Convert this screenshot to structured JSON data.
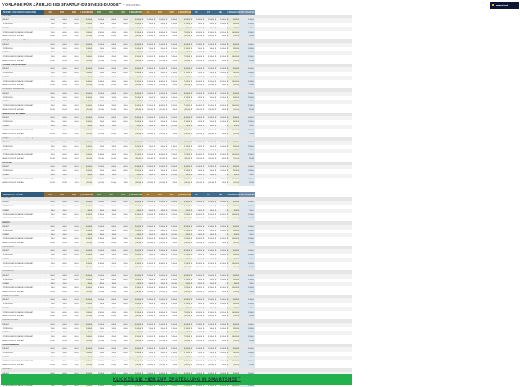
{
  "title": "VORLAGE FÜR JÄHRLICHES STARTUP-BUSINESS-BUDGET",
  "subtitle": "– BEISPIEL",
  "logo_text": "smartsheet",
  "cta_label": "KLICKEN SIE HIER ZUR ERSTELLUNG IN SMARTSHEET",
  "months": [
    "JAN",
    "FEB",
    "MÄR",
    "Q1 ERGEBNISSE",
    "APR",
    "MAI",
    "JUN",
    "Q2 ERGEBNISSE",
    "JUL",
    "AUG",
    "SEPT",
    "Q3 ERGEBNISSE",
    "OKT",
    "NOV",
    "DEZ",
    "Q4 ERGEBNISSE",
    "JÄHRLICHES GESAMTERGEBNIS"
  ],
  "colors": {
    "header_label": "#2f5b7c",
    "q1": "#8a6d3b",
    "q2": "#5f7d4b",
    "q3": "#a07a3a",
    "q4": "#3f6b8c",
    "annual": "#6f8aa8"
  },
  "row_labels": {
    "budget": "BUDGET",
    "actual": "TATSÄCHLICH",
    "variance": "VARIANZ",
    "actual_ytd": "TATSÄCHLICHER BETRAG BIS VORMONAT",
    "deviation": "ABWEICHUNG VOM VORJAHR"
  },
  "row_values": {
    "budget": [
      "1.000,00",
      "1.000,00",
      "1.000,00",
      "3.000,00",
      "1.000,00",
      "1.000,00",
      "1.000,00",
      "3.000,00",
      "1.000,00",
      "1.000,00",
      "1.000,00",
      "3.000,00",
      "1.000,00",
      "1.000,00",
      "1.000,00",
      "3.000,00",
      "12.000,00"
    ],
    "actual": [
      "700,00",
      "900,00",
      "1.000,00",
      "2.600,00",
      "700,00",
      "900,00",
      "1.000,00",
      "2.600,00",
      "700,00",
      "900,00",
      "1.100,00",
      "2.700,00",
      "700,00",
      "900,00",
      "1.000,00",
      "2.600,00",
      "10.500,00"
    ],
    "variance": [
      "300,00",
      "100,00",
      "-",
      "400,00",
      "300,00",
      "100,00",
      "-",
      "400,00",
      "300,00",
      "100,00",
      "(100,00)",
      "300,00",
      "300,00",
      "100,00",
      "-",
      "400,00",
      "1.500,00"
    ],
    "actual_ytd": [
      "700,00",
      "1.600,00",
      "2.600,00",
      "2.600,00",
      "3.300,00",
      "4.200,00",
      "5.200,00",
      "5.200,00",
      "5.900,00",
      "6.800,00",
      "7.900,00",
      "7.900,00",
      "8.600,00",
      "9.500,00",
      "10.500,00",
      "10.500,00",
      "10.500,00"
    ],
    "deviation": [
      "(200,00)",
      "(100,00)",
      "100,00",
      "(200,00)",
      "(200,00)",
      "(100,00)",
      "100,00",
      "(200,00)",
      "(200,00)",
      "(100,00)",
      "200,00",
      "(100,00)",
      "(200,00)",
      "(100,00)",
      "100,00",
      "(200,00)",
      "(700,00)"
    ]
  },
  "currency": "$",
  "table1": {
    "header_label": "BETRIEBS- UND VERWALTUNGSKOSTEN",
    "sections": [
      "GEHÄLTER",
      "COGS (Kosten der verkauften Waren)",
      "VERTRIEB – FIXKOSTENTRÄGER",
      "KOSTEN FÜR ANBIETERSEITE",
      "ADMINISTRATIVE - ALLGEMEIN",
      "EBIT (Einkommen vor Zinsen und Steuern)",
      "RÜCKSTAND"
    ]
  },
  "table2": {
    "header_label": "BELEGSCHAFTSKOSTEN",
    "sections": [
      "GEHÄLTER",
      "BENEFITS",
      "VERSICHERUNG",
      "FORDERUNGEN",
      "BETTUNGSAUSGABEN",
      "FERNMELDEKOSTEN",
      "UNVORHERSEHBARES",
      "RÜCKSTAND"
    ]
  }
}
